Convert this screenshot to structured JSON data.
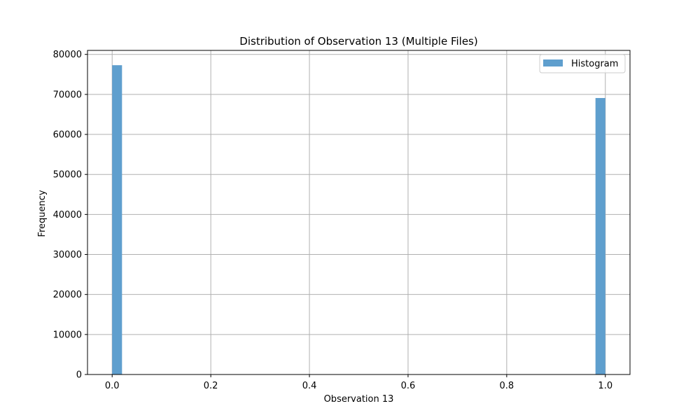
{
  "chart_data": {
    "type": "bar",
    "title": "Distribution of Observation 13 (Multiple Files)",
    "xlabel": "Observation 13",
    "ylabel": "Frequency",
    "xlim": [
      -0.05,
      1.05
    ],
    "ylim": [
      0,
      81000
    ],
    "xticks": [
      0.0,
      0.2,
      0.4,
      0.6,
      0.8,
      1.0
    ],
    "xtick_labels": [
      "0.0",
      "0.2",
      "0.4",
      "0.6",
      "0.8",
      "1.0"
    ],
    "yticks": [
      0,
      10000,
      20000,
      30000,
      40000,
      50000,
      60000,
      70000,
      80000
    ],
    "ytick_labels": [
      "0",
      "10000",
      "20000",
      "30000",
      "40000",
      "50000",
      "60000",
      "70000",
      "80000"
    ],
    "grid": true,
    "legend_position": "top-right",
    "color": "#5f9fce",
    "series": [
      {
        "name": "Histogram",
        "bins": [
          {
            "x0": 0.0,
            "x1": 0.02,
            "value": 77300
          },
          {
            "x0": 0.98,
            "x1": 1.0,
            "value": 69100
          }
        ]
      }
    ]
  }
}
